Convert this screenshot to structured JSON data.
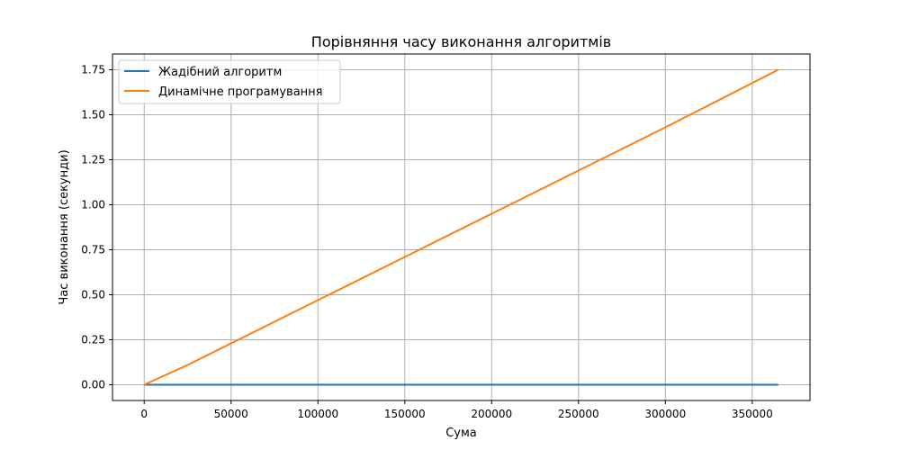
{
  "chart_data": {
    "type": "line",
    "title": "Порівняння часу виконання алгоритмів",
    "xlabel": "Сума",
    "ylabel": "Час виконання (секунди)",
    "xlim": [
      -18250,
      383250
    ],
    "ylim": [
      -0.0875,
      1.8375
    ],
    "xticks": [
      0,
      50000,
      100000,
      150000,
      200000,
      250000,
      300000,
      350000
    ],
    "xtick_labels": [
      "0",
      "50000",
      "100000",
      "150000",
      "200000",
      "250000",
      "300000",
      "350000"
    ],
    "yticks": [
      0.0,
      0.25,
      0.5,
      0.75,
      1.0,
      1.25,
      1.5,
      1.75
    ],
    "ytick_labels": [
      "0.00",
      "0.25",
      "0.50",
      "0.75",
      "1.00",
      "1.25",
      "1.50",
      "1.75"
    ],
    "grid": true,
    "legend_position": "top-left",
    "series": [
      {
        "name": "Жадібний алгоритм",
        "color": "#1f77b4",
        "x": [
          0,
          25000,
          50000,
          100000,
          150000,
          200000,
          250000,
          300000,
          365000
        ],
        "y": [
          0.0,
          0.0,
          0.0,
          0.0,
          0.0,
          0.0,
          0.0,
          0.0,
          0.0
        ]
      },
      {
        "name": "Динамічне програмування",
        "color": "#ff7f0e",
        "x": [
          0,
          25000,
          50000,
          100000,
          150000,
          200000,
          250000,
          300000,
          365000
        ],
        "y": [
          0.0,
          0.11,
          0.23,
          0.47,
          0.71,
          0.95,
          1.19,
          1.43,
          1.75
        ]
      }
    ]
  }
}
